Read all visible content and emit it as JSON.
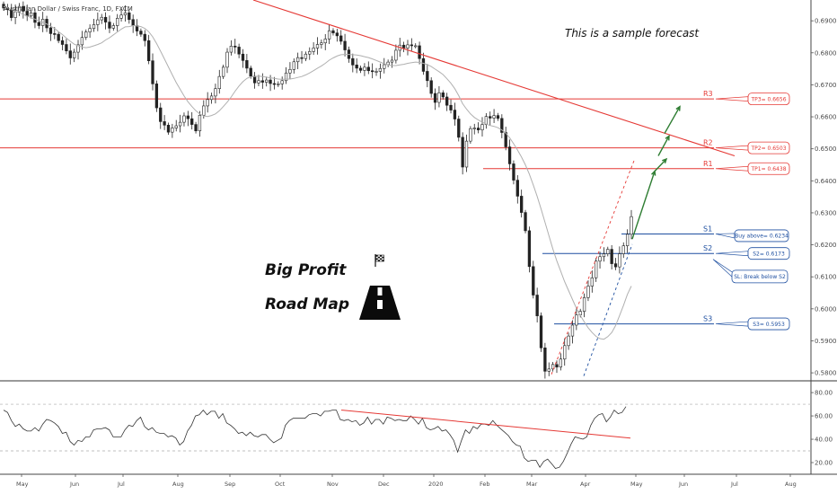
{
  "header": {
    "symbol": "Australian Dollar / Swiss Franc, 1D, FXCM"
  },
  "annotations": {
    "forecast_note": "This is a sample forecast",
    "title_line1": "Big Profit",
    "title_line2": "Road Map"
  },
  "colors": {
    "resistance": "#e53935",
    "support": "#1e4fa0",
    "forecast_arrow": "#2e7d32",
    "candle": "#222222",
    "ma": "#b0b0b0"
  },
  "icons": [
    "checkered-flag-icon",
    "road-icon"
  ],
  "chart_data": [
    {
      "type": "candlestick",
      "title": "Australian Dollar / Swiss Franc, 1D, FXCM",
      "x_tick_labels": [
        "May",
        "Jun",
        "Jul",
        "Aug",
        "Sep",
        "Oct",
        "Nov",
        "Dec",
        "2020",
        "Feb",
        "Mar",
        "Apr",
        "May",
        "Jun",
        "Jul",
        "Aug"
      ],
      "y_tick_labels": [
        "0.69000",
        "0.68000",
        "0.67000",
        "0.66000",
        "0.65000",
        "0.64000",
        "0.63000",
        "0.62000",
        "0.61000",
        "0.60000",
        "0.59000",
        "0.58000"
      ],
      "ylim": [
        0.5775,
        0.6965
      ],
      "levels": [
        {
          "name": "R3",
          "value": 0.6656,
          "kind": "resistance",
          "callout": "TP3= 0.6656"
        },
        {
          "name": "R2",
          "value": 0.6503,
          "kind": "resistance",
          "callout": "TP2= 0.6503"
        },
        {
          "name": "R1",
          "value": 0.6438,
          "kind": "resistance",
          "callout": "TP1= 0.6438"
        },
        {
          "name": "S1",
          "value": 0.6234,
          "kind": "support",
          "callout": "Buy above= 0.6234"
        },
        {
          "name": "S2",
          "value": 0.6173,
          "kind": "support",
          "callout": "S2= 0.6173"
        },
        {
          "name": "S3",
          "value": 0.5953,
          "kind": "support",
          "callout": "S3= 0.5953"
        }
      ],
      "stop_loss_note": "SL: Break below S2",
      "close_series": [
        0.694,
        0.6935,
        0.691,
        0.6928,
        0.6945,
        0.693,
        0.6915,
        0.6925,
        0.6895,
        0.6885,
        0.6905,
        0.6878,
        0.686,
        0.6858,
        0.6838,
        0.6826,
        0.6806,
        0.6784,
        0.6802,
        0.6825,
        0.6848,
        0.6865,
        0.6876,
        0.6888,
        0.6903,
        0.6911,
        0.6896,
        0.6877,
        0.6885,
        0.6908,
        0.6918,
        0.6925,
        0.6904,
        0.6885,
        0.6868,
        0.6858,
        0.6838,
        0.6775,
        0.6703,
        0.6628,
        0.6585,
        0.6574,
        0.6552,
        0.6565,
        0.6572,
        0.6583,
        0.6603,
        0.6594,
        0.6576,
        0.6556,
        0.6605,
        0.6634,
        0.6654,
        0.6665,
        0.6688,
        0.6726,
        0.6755,
        0.6802,
        0.6821,
        0.6818,
        0.6796,
        0.6776,
        0.6752,
        0.6727,
        0.6706,
        0.6713,
        0.6708,
        0.6715,
        0.6704,
        0.6701,
        0.6703,
        0.6713,
        0.6737,
        0.6748,
        0.6772,
        0.6785,
        0.6782,
        0.6796,
        0.6804,
        0.6815,
        0.6826,
        0.6831,
        0.6843,
        0.6869,
        0.6862,
        0.6853,
        0.6836,
        0.6809,
        0.6782,
        0.6762,
        0.6752,
        0.6745,
        0.6755,
        0.6744,
        0.6741,
        0.6742,
        0.6751,
        0.6763,
        0.6771,
        0.6777,
        0.6808,
        0.6824,
        0.6815,
        0.6825,
        0.6822,
        0.6822,
        0.6782,
        0.6742,
        0.6713,
        0.6673,
        0.6645,
        0.6675,
        0.6662,
        0.6636,
        0.6621,
        0.6593,
        0.6536,
        0.6443,
        0.6524,
        0.6563,
        0.6565,
        0.6559,
        0.6576,
        0.6601,
        0.6596,
        0.6604,
        0.6595,
        0.6551,
        0.6506,
        0.6453,
        0.6402,
        0.6352,
        0.6301,
        0.6244,
        0.6132,
        0.6043,
        0.5978,
        0.5878,
        0.5805,
        0.5812,
        0.5826,
        0.5818,
        0.5843,
        0.5885,
        0.5915,
        0.5949,
        0.5981,
        0.5992,
        0.6035,
        0.6071,
        0.6097,
        0.6149,
        0.6163,
        0.6172,
        0.6186,
        0.6141,
        0.6131,
        0.6172,
        0.6197,
        0.6233,
        0.6288
      ],
      "ma_series": [
        0.6945,
        0.694,
        0.6935,
        0.693,
        0.6925,
        0.692,
        0.6915,
        0.691,
        0.6905,
        0.69,
        0.6895,
        0.689,
        0.6883,
        0.6876,
        0.6866,
        0.6857,
        0.6846,
        0.6836,
        0.6827,
        0.6822,
        0.6818,
        0.6816,
        0.6818,
        0.6822,
        0.6826,
        0.6831,
        0.684,
        0.6847,
        0.6856,
        0.6865,
        0.6874,
        0.6881,
        0.6882,
        0.6885,
        0.6884,
        0.6882,
        0.6876,
        0.6866,
        0.685,
        0.6829,
        0.6805,
        0.6781,
        0.6756,
        0.6731,
        0.6707,
        0.6686,
        0.6665,
        0.6647,
        0.6632,
        0.6619,
        0.6609,
        0.6603,
        0.6601,
        0.6604,
        0.6609,
        0.6619,
        0.6632,
        0.6646,
        0.6662,
        0.668,
        0.6696,
        0.671,
        0.672,
        0.6725,
        0.6726,
        0.6727,
        0.6726,
        0.6724,
        0.6722,
        0.672,
        0.6718,
        0.6717,
        0.6718,
        0.6718,
        0.672,
        0.6723,
        0.6726,
        0.6731,
        0.6737,
        0.6744,
        0.6752,
        0.6759,
        0.6767,
        0.6777,
        0.6784,
        0.679,
        0.6794,
        0.6795,
        0.6795,
        0.6794,
        0.6793,
        0.6791,
        0.6788,
        0.6785,
        0.6781,
        0.6776,
        0.6771,
        0.6766,
        0.6762,
        0.676,
        0.676,
        0.6762,
        0.6764,
        0.6767,
        0.6769,
        0.6771,
        0.677,
        0.6767,
        0.6763,
        0.6757,
        0.6749,
        0.6741,
        0.6732,
        0.6719,
        0.6705,
        0.6688,
        0.6666,
        0.6641,
        0.6624,
        0.6609,
        0.6598,
        0.659,
        0.6583,
        0.6577,
        0.6573,
        0.657,
        0.6566,
        0.6559,
        0.6549,
        0.6534,
        0.6516,
        0.6496,
        0.6474,
        0.645,
        0.6421,
        0.6387,
        0.6351,
        0.6312,
        0.627,
        0.6228,
        0.6187,
        0.615,
        0.6117,
        0.6085,
        0.6057,
        0.6029,
        0.6002,
        0.5979,
        0.5959,
        0.5941,
        0.5926,
        0.5914,
        0.5907,
        0.5905,
        0.5913,
        0.5926,
        0.5948,
        0.5979,
        0.6011,
        0.6045,
        0.6071
      ]
    },
    {
      "type": "line",
      "ylim": [
        10,
        87
      ],
      "y_tick_labels": [
        "80.00",
        "60.00",
        "40.00",
        "20.00"
      ],
      "levels": [
        70,
        30
      ],
      "values": [
        65,
        63,
        56,
        51,
        53,
        49,
        47,
        47,
        50,
        47,
        53,
        57,
        56,
        54,
        51,
        45,
        46,
        38,
        35,
        39,
        38,
        42,
        42,
        48,
        49,
        49,
        50,
        48,
        42,
        42,
        42,
        48,
        52,
        51,
        56,
        59,
        51,
        48,
        50,
        46,
        45,
        45,
        42,
        43,
        41,
        35,
        38,
        47,
        52,
        60,
        61,
        65,
        61,
        64,
        64,
        58,
        62,
        54,
        52,
        49,
        45,
        46,
        43,
        46,
        43,
        42,
        44,
        44,
        40,
        37,
        39,
        41,
        52,
        56,
        58,
        58,
        58,
        58,
        61,
        62,
        62,
        60,
        64,
        64,
        65,
        65,
        57,
        56,
        57,
        55,
        56,
        52,
        54,
        59,
        53,
        57,
        57,
        53,
        59,
        58,
        56,
        57,
        56,
        56,
        60,
        57,
        53,
        58,
        50,
        48,
        49,
        51,
        47,
        48,
        44,
        39,
        29,
        39,
        48,
        45,
        51,
        49,
        53,
        53,
        52,
        56,
        52,
        49,
        46,
        43,
        38,
        35,
        34,
        24,
        21,
        22,
        22,
        16,
        21,
        23,
        19,
        15,
        16,
        21,
        28,
        36,
        42,
        41,
        40,
        42,
        52,
        58,
        61,
        62,
        55,
        59,
        65,
        62,
        63,
        68
      ]
    }
  ]
}
